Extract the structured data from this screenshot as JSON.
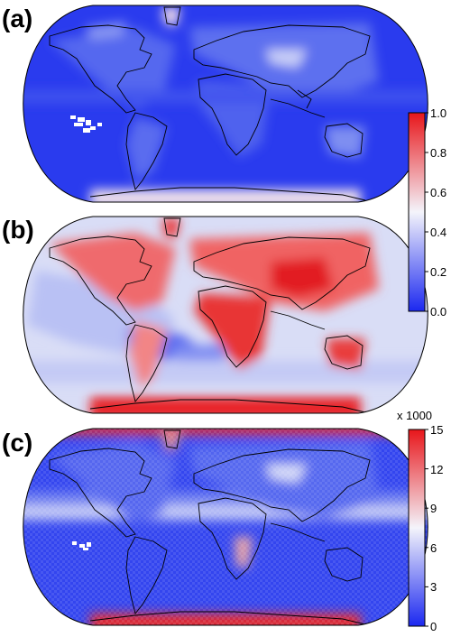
{
  "panels": [
    {
      "label": "(a)",
      "colorbar": "cb1"
    },
    {
      "label": "(b)",
      "colorbar": "cb1"
    },
    {
      "label": "(c)",
      "colorbar": "cb2"
    }
  ],
  "colorbars": {
    "cb1": {
      "ticks": [
        "1.0",
        "0.8",
        "0.6",
        "0.4",
        "0.2",
        "0.0"
      ],
      "multiplier": ""
    },
    "cb2": {
      "ticks": [
        "15",
        "12",
        "9",
        "6",
        "3",
        "0"
      ],
      "multiplier": "x 1000"
    }
  },
  "colors": {
    "low": "#1b28f0",
    "mid": "#f4f4fb",
    "high": "#e8161b",
    "coast": "#000000"
  }
}
